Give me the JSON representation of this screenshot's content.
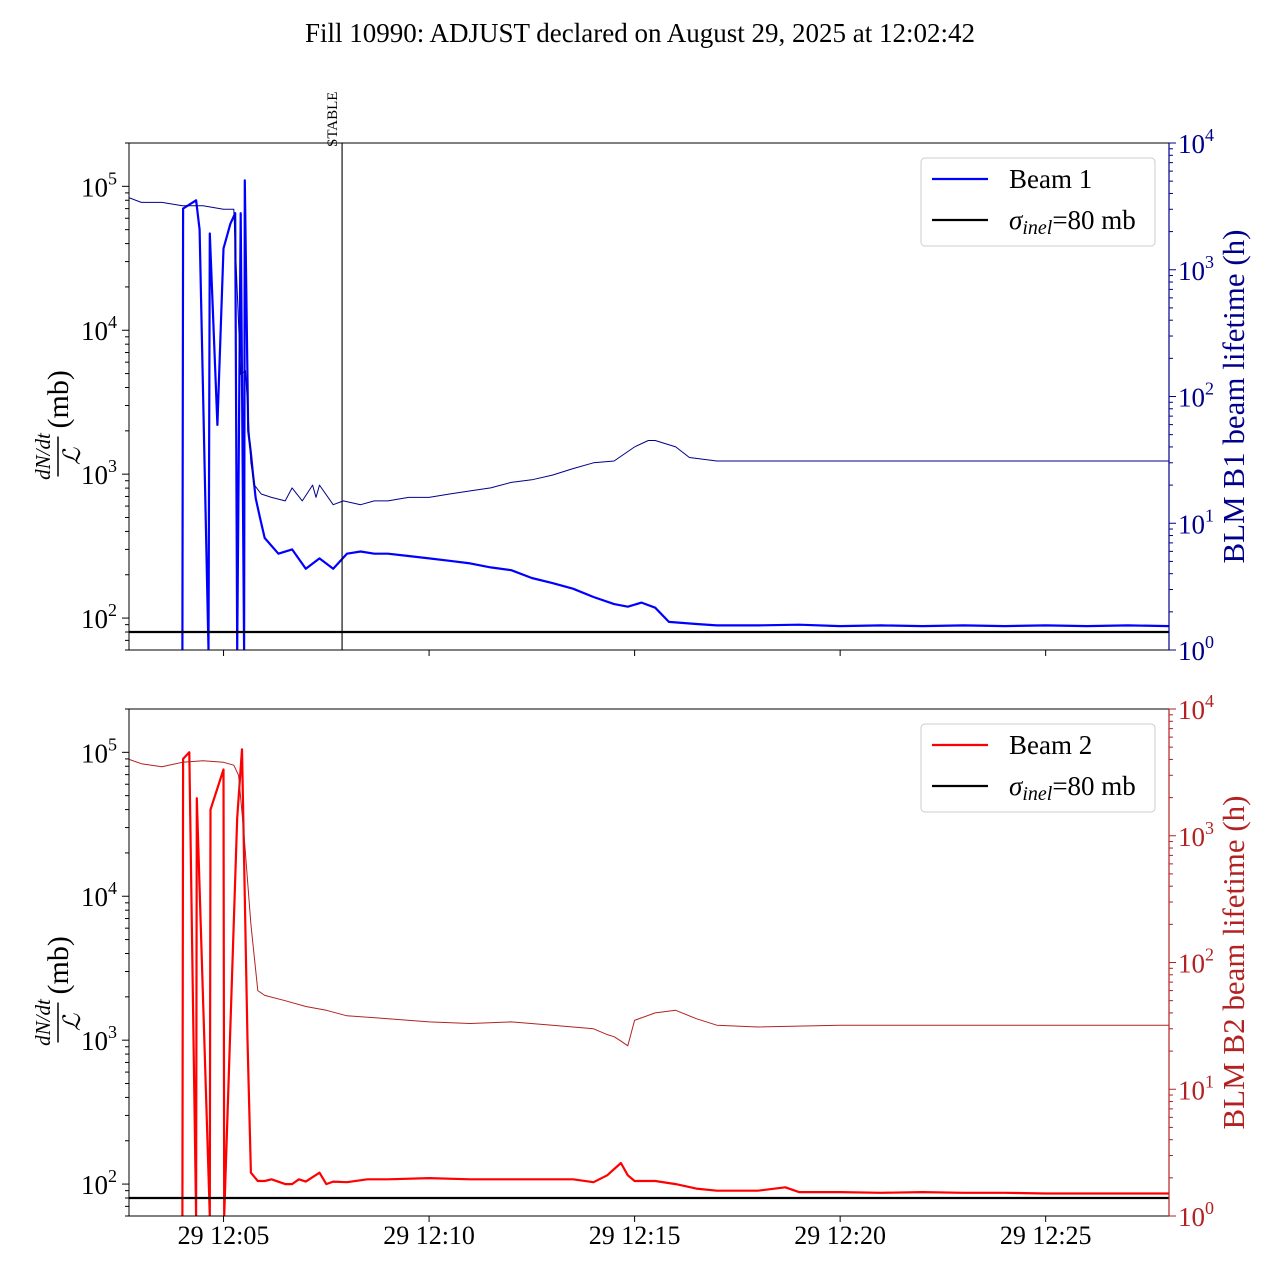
{
  "title": "Fill 10990: ADJUST declared on August 29, 2025 at 12:02:42",
  "colors": {
    "beam1": "#0000ff",
    "beam1_lifetime": "#00008b",
    "beam2": "#ff0000",
    "beam2_lifetime": "#b22222",
    "sigma": "#000000"
  },
  "chart_data": [
    {
      "type": "line",
      "panel": "top",
      "ylabel": {
        "frac_num": "dN/dt",
        "frac_den": "ℒ",
        "unit": "(mb)"
      },
      "y2label": "BLM B1 beam lifetime (h)",
      "yscale": "log",
      "ylim": [
        60,
        200000
      ],
      "y2scale": "log",
      "y2lim": [
        1,
        10000
      ],
      "xlim": [
        "12:02:42",
        "12:28:00"
      ],
      "yticks": [
        {
          "base": "10",
          "exp": "2",
          "value": 100
        },
        {
          "base": "10",
          "exp": "3",
          "value": 1000
        },
        {
          "base": "10",
          "exp": "4",
          "value": 10000
        },
        {
          "base": "10",
          "exp": "5",
          "value": 100000
        }
      ],
      "y2ticks": [
        {
          "base": "10",
          "exp": "0",
          "value": 1
        },
        {
          "base": "10",
          "exp": "1",
          "value": 10
        },
        {
          "base": "10",
          "exp": "2",
          "value": 100
        },
        {
          "base": "10",
          "exp": "3",
          "value": 1000
        },
        {
          "base": "10",
          "exp": "4",
          "value": 10000
        }
      ],
      "xticks": [],
      "annotation": {
        "label": "STABLE",
        "x": "12:07:53"
      },
      "hline": {
        "value": 80
      },
      "legend": {
        "position": "upper right",
        "entries": [
          "Beam 1",
          "σinel=80 mb"
        ],
        "sigma_symbol": "σ",
        "sigma_sub": "inel",
        "sigma_rest": "=80 mb"
      },
      "series": [
        {
          "name": "Beam 1",
          "axis": "left",
          "width": 2.2,
          "x": [
            "12:04:00",
            "12:04:01",
            "12:04:20",
            "12:04:25",
            "12:04:38",
            "12:04:40",
            "12:04:51",
            "12:05:00",
            "12:05:10",
            "12:05:17",
            "12:05:20",
            "12:05:25",
            "12:05:30",
            "12:05:31",
            "12:05:36",
            "12:05:40",
            "12:05:43",
            "12:05:47",
            "12:05:54",
            "12:06:00",
            "12:06:20",
            "12:06:40",
            "12:07:00",
            "12:07:20",
            "12:07:40",
            "12:08:00",
            "12:08:20",
            "12:08:40",
            "12:09:00",
            "12:09:30",
            "12:10:00",
            "12:10:30",
            "12:11:00",
            "12:11:30",
            "12:12:00",
            "12:12:30",
            "12:13:00",
            "12:13:30",
            "12:14:00",
            "12:14:30",
            "12:14:50",
            "12:15:10",
            "12:15:30",
            "12:15:50",
            "12:16:30",
            "12:17:00",
            "12:18:00",
            "12:19:00",
            "12:20:00",
            "12:21:00",
            "12:22:00",
            "12:23:00",
            "12:24:00",
            "12:25:00",
            "12:26:00",
            "12:27:00",
            "12:28:00"
          ],
          "y": [
            60,
            70000,
            80000,
            50000,
            60,
            47000,
            2200,
            37000,
            55000,
            65000,
            60,
            65000,
            60,
            110000,
            2000,
            1400,
            1000,
            680,
            480,
            360,
            280,
            300,
            220,
            260,
            220,
            280,
            290,
            280,
            280,
            270,
            260,
            250,
            240,
            225,
            215,
            190,
            175,
            160,
            140,
            125,
            120,
            128,
            118,
            94,
            91,
            89,
            89,
            90,
            88,
            89,
            88,
            89,
            88,
            89,
            88,
            89,
            88
          ]
        },
        {
          "name": "BLM B1 beam lifetime",
          "axis": "right",
          "width": 1,
          "x": [
            "12:02:42",
            "12:03:00",
            "12:03:30",
            "12:04:00",
            "12:04:30",
            "12:05:00",
            "12:05:15",
            "12:05:25",
            "12:05:32",
            "12:05:40",
            "12:05:45",
            "12:05:55",
            "12:06:10",
            "12:06:30",
            "12:06:40",
            "12:06:55",
            "12:07:10",
            "12:07:15",
            "12:07:20",
            "12:07:40",
            "12:07:55",
            "12:08:20",
            "12:08:40",
            "12:09:00",
            "12:09:30",
            "12:10:00",
            "12:10:30",
            "12:11:00",
            "12:11:30",
            "12:12:00",
            "12:12:30",
            "12:13:00",
            "12:13:30",
            "12:14:00",
            "12:14:30",
            "12:15:00",
            "12:15:20",
            "12:15:30",
            "12:16:00",
            "12:16:20",
            "12:17:00",
            "12:18:00",
            "12:20:00",
            "12:22:00",
            "12:24:00",
            "12:26:00",
            "12:28:00"
          ],
          "y": [
            3700,
            3400,
            3400,
            3200,
            3200,
            3000,
            3000,
            150,
            160,
            30,
            20,
            17,
            16,
            15,
            19,
            15,
            20,
            16,
            20,
            14,
            15,
            14,
            15,
            15,
            16,
            16,
            17,
            18,
            19,
            21,
            22,
            24,
            27,
            30,
            31,
            40,
            45,
            45,
            40,
            33,
            31,
            31,
            31,
            31,
            31,
            31,
            31
          ]
        }
      ]
    },
    {
      "type": "line",
      "panel": "bottom",
      "ylabel": {
        "frac_num": "dN/dt",
        "frac_den": "ℒ",
        "unit": "(mb)"
      },
      "y2label": "BLM B2 beam lifetime (h)",
      "yscale": "log",
      "ylim": [
        60,
        200000
      ],
      "y2scale": "log",
      "y2lim": [
        1,
        10000
      ],
      "xlim": [
        "12:02:42",
        "12:28:00"
      ],
      "yticks": [
        {
          "base": "10",
          "exp": "2",
          "value": 100
        },
        {
          "base": "10",
          "exp": "3",
          "value": 1000
        },
        {
          "base": "10",
          "exp": "4",
          "value": 10000
        },
        {
          "base": "10",
          "exp": "5",
          "value": 100000
        }
      ],
      "y2ticks": [
        {
          "base": "10",
          "exp": "0",
          "value": 1
        },
        {
          "base": "10",
          "exp": "1",
          "value": 10
        },
        {
          "base": "10",
          "exp": "2",
          "value": 100
        },
        {
          "base": "10",
          "exp": "3",
          "value": 1000
        },
        {
          "base": "10",
          "exp": "4",
          "value": 10000
        }
      ],
      "xticks": [
        {
          "label": "29 12:05",
          "x": "12:05:00"
        },
        {
          "label": "29 12:10",
          "x": "12:10:00"
        },
        {
          "label": "29 12:15",
          "x": "12:15:00"
        },
        {
          "label": "29 12:20",
          "x": "12:20:00"
        },
        {
          "label": "29 12:25",
          "x": "12:25:00"
        }
      ],
      "hline": {
        "value": 80
      },
      "legend": {
        "position": "upper right",
        "entries": [
          "Beam 2",
          "σinel=80 mb"
        ],
        "sigma_symbol": "σ",
        "sigma_sub": "inel",
        "sigma_rest": "=80 mb"
      },
      "series": [
        {
          "name": "Beam 2",
          "axis": "left",
          "width": 2.2,
          "x": [
            "12:04:00",
            "12:04:01",
            "12:04:10",
            "12:04:20",
            "12:04:21",
            "12:04:40",
            "12:04:41",
            "12:05:00",
            "12:05:01",
            "12:05:20",
            "12:05:27",
            "12:05:35",
            "12:05:40",
            "12:05:50",
            "12:06:00",
            "12:06:10",
            "12:06:30",
            "12:06:40",
            "12:06:50",
            "12:07:00",
            "12:07:20",
            "12:07:30",
            "12:07:40",
            "12:08:00",
            "12:08:30",
            "12:09:00",
            "12:10:00",
            "12:11:00",
            "12:12:00",
            "12:13:00",
            "12:13:30",
            "12:14:00",
            "12:14:20",
            "12:14:40",
            "12:14:50",
            "12:15:00",
            "12:15:30",
            "12:16:00",
            "12:16:30",
            "12:17:00",
            "12:18:00",
            "12:18:40",
            "12:19:00",
            "12:20:00",
            "12:21:00",
            "12:22:00",
            "12:23:00",
            "12:24:00",
            "12:25:00",
            "12:26:00",
            "12:27:00",
            "12:28:00"
          ],
          "y": [
            60,
            90000,
            100000,
            60,
            48000,
            60,
            40000,
            76000,
            60,
            35000,
            105000,
            1000,
            120,
            105,
            105,
            108,
            100,
            100,
            108,
            104,
            120,
            100,
            104,
            103,
            108,
            108,
            110,
            108,
            108,
            108,
            108,
            103,
            115,
            140,
            115,
            105,
            105,
            100,
            93,
            90,
            90,
            95,
            88,
            88,
            87,
            88,
            87,
            87,
            86,
            86,
            86,
            86
          ]
        },
        {
          "name": "BLM B2 beam lifetime",
          "axis": "right",
          "width": 1,
          "x": [
            "12:02:42",
            "12:03:00",
            "12:03:30",
            "12:04:00",
            "12:04:30",
            "12:05:00",
            "12:05:15",
            "12:05:22",
            "12:05:30",
            "12:05:40",
            "12:05:50",
            "12:06:00",
            "12:06:30",
            "12:07:00",
            "12:07:30",
            "12:08:00",
            "12:09:00",
            "12:10:00",
            "12:11:00",
            "12:12:00",
            "12:13:00",
            "12:14:00",
            "12:14:20",
            "12:14:30",
            "12:14:40",
            "12:14:50",
            "12:15:00",
            "12:15:30",
            "12:16:00",
            "12:16:30",
            "12:17:00",
            "12:18:00",
            "12:20:00",
            "12:22:00",
            "12:24:00",
            "12:26:00",
            "12:28:00"
          ],
          "y": [
            4000,
            3700,
            3500,
            3800,
            3900,
            3800,
            3600,
            3000,
            1000,
            200,
            60,
            55,
            50,
            45,
            42,
            38,
            36,
            34,
            33,
            34,
            32,
            30,
            27,
            26,
            24,
            22,
            35,
            40,
            42,
            36,
            32,
            31,
            32,
            32,
            32,
            32,
            32
          ]
        }
      ]
    }
  ]
}
